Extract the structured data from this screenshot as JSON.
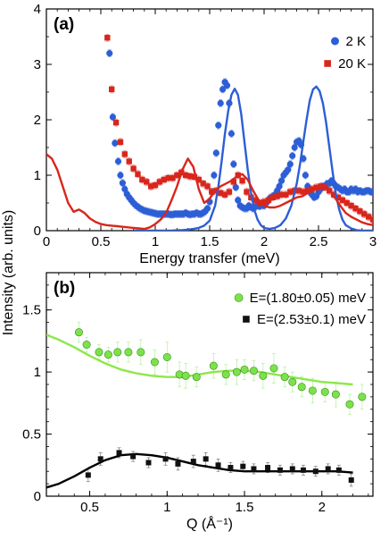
{
  "figure": {
    "ylabel": "Intensity (arb. units)"
  },
  "chart_data": [
    {
      "type": "scatter",
      "panel_label": "(a)",
      "xlabel": "Energy transfer (meV)",
      "ylabel": "",
      "xlim": [
        0,
        3
      ],
      "ylim": [
        0,
        4
      ],
      "x_ticks": [
        "0",
        "0.5",
        "1",
        "1.5",
        "2",
        "2.5",
        "3"
      ],
      "y_ticks": [
        "0",
        "1",
        "2",
        "3",
        "4"
      ],
      "grid": false,
      "legend_position": "top-right",
      "series": [
        {
          "name": "2 K",
          "color": "#2c5ed6",
          "marker": "circle",
          "x": [
            0.58,
            0.61,
            0.63,
            0.66,
            0.68,
            0.7,
            0.72,
            0.74,
            0.76,
            0.78,
            0.8,
            0.82,
            0.84,
            0.86,
            0.88,
            0.9,
            0.92,
            0.94,
            0.96,
            0.98,
            1.0,
            1.02,
            1.04,
            1.06,
            1.08,
            1.1,
            1.12,
            1.14,
            1.16,
            1.18,
            1.2,
            1.22,
            1.24,
            1.26,
            1.28,
            1.3,
            1.32,
            1.34,
            1.36,
            1.38,
            1.4,
            1.42,
            1.44,
            1.46,
            1.48,
            1.5,
            1.52,
            1.54,
            1.56,
            1.58,
            1.6,
            1.62,
            1.64,
            1.66,
            1.68,
            1.7,
            1.72,
            1.74,
            1.76,
            1.78,
            1.8,
            1.82,
            1.84,
            1.86,
            1.88,
            1.9,
            1.92,
            1.94,
            1.96,
            1.98,
            2.0,
            2.02,
            2.04,
            2.06,
            2.08,
            2.1,
            2.12,
            2.14,
            2.16,
            2.18,
            2.2,
            2.22,
            2.24,
            2.26,
            2.28,
            2.3,
            2.32,
            2.34,
            2.36,
            2.38,
            2.4,
            2.42,
            2.44,
            2.46,
            2.48,
            2.5,
            2.52,
            2.54,
            2.56,
            2.58,
            2.6,
            2.62,
            2.64,
            2.66,
            2.68,
            2.7,
            2.72,
            2.74,
            2.76,
            2.78,
            2.8,
            2.82,
            2.84,
            2.86,
            2.88,
            2.9,
            2.92,
            2.94,
            2.96,
            2.98,
            3.0
          ],
          "y": [
            3.2,
            2.05,
            1.58,
            1.25,
            1.0,
            0.86,
            0.75,
            0.66,
            0.6,
            0.55,
            0.5,
            0.46,
            0.43,
            0.4,
            0.38,
            0.36,
            0.35,
            0.34,
            0.33,
            0.32,
            0.31,
            0.3,
            0.3,
            0.3,
            0.3,
            0.3,
            0.3,
            0.29,
            0.29,
            0.3,
            0.3,
            0.3,
            0.3,
            0.3,
            0.32,
            0.3,
            0.29,
            0.3,
            0.3,
            0.32,
            0.3,
            0.3,
            0.32,
            0.35,
            0.4,
            0.52,
            0.7,
            1.0,
            1.4,
            1.9,
            2.3,
            2.55,
            2.68,
            2.62,
            2.3,
            1.75,
            1.2,
            0.78,
            0.55,
            0.45,
            0.42,
            0.4,
            0.4,
            0.45,
            0.42,
            0.4,
            0.43,
            0.45,
            0.44,
            0.46,
            0.45,
            0.5,
            0.55,
            0.6,
            0.62,
            0.65,
            0.72,
            0.8,
            0.9,
            1.0,
            1.05,
            1.1,
            1.2,
            1.35,
            1.5,
            1.6,
            1.62,
            1.55,
            1.3,
            1.0,
            0.8,
            0.7,
            0.65,
            0.6,
            0.62,
            0.7,
            0.75,
            0.8,
            0.8,
            0.85,
            0.85,
            0.9,
            0.85,
            0.8,
            0.78,
            0.75,
            0.72,
            0.75,
            0.7,
            0.7,
            0.75,
            0.72,
            0.75,
            0.7,
            0.72,
            0.7,
            0.7,
            0.72,
            0.72,
            0.7,
            0.7
          ]
        },
        {
          "name": "20 K",
          "color": "#d8261c",
          "marker": "square",
          "x": [
            0.56,
            0.6,
            0.64,
            0.68,
            0.72,
            0.76,
            0.8,
            0.84,
            0.88,
            0.92,
            0.96,
            1.0,
            1.04,
            1.08,
            1.12,
            1.16,
            1.2,
            1.24,
            1.28,
            1.32,
            1.36,
            1.4,
            1.44,
            1.48,
            1.52,
            1.56,
            1.6,
            1.64,
            1.68,
            1.72,
            1.76,
            1.8,
            1.84,
            1.88,
            1.92,
            1.96,
            2.0,
            2.04,
            2.08,
            2.12,
            2.16,
            2.2,
            2.24,
            2.28,
            2.32,
            2.36,
            2.4,
            2.44,
            2.48,
            2.52,
            2.56,
            2.6,
            2.64,
            2.68,
            2.72,
            2.76,
            2.8,
            2.84,
            2.88,
            2.92,
            2.96,
            3.0
          ],
          "y": [
            3.48,
            2.55,
            1.95,
            1.6,
            1.38,
            1.25,
            1.12,
            1.02,
            0.92,
            0.88,
            0.8,
            0.82,
            0.88,
            0.92,
            0.95,
            0.95,
            1.0,
            1.05,
            1.0,
            0.98,
            0.97,
            0.92,
            0.85,
            0.8,
            0.7,
            0.72,
            0.68,
            0.65,
            0.7,
            0.88,
            1.0,
            0.9,
            0.7,
            0.6,
            0.55,
            0.5,
            0.52,
            0.55,
            0.6,
            0.62,
            0.65,
            0.65,
            0.7,
            0.72,
            0.72,
            0.7,
            0.72,
            0.75,
            0.78,
            0.8,
            0.78,
            0.72,
            0.65,
            0.6,
            0.55,
            0.5,
            0.45,
            0.4,
            0.35,
            0.3,
            0.25,
            0.2
          ]
        }
      ],
      "fit_curves": [
        {
          "color": "#2c5ed6",
          "x": [
            0.8,
            0.85,
            0.9,
            0.95,
            1.0,
            1.05,
            1.1,
            1.15,
            1.2,
            1.25,
            1.3,
            1.35,
            1.4,
            1.45,
            1.5,
            1.55,
            1.58,
            1.61,
            1.64,
            1.67,
            1.7,
            1.73,
            1.76,
            1.79,
            1.82,
            1.85,
            1.88,
            1.91,
            1.94,
            1.97,
            2.0,
            2.05,
            2.1,
            2.15,
            2.2,
            2.25,
            2.3,
            2.33,
            2.36,
            2.39,
            2.42,
            2.45,
            2.48,
            2.51,
            2.54,
            2.57,
            2.6,
            2.63,
            2.66,
            2.69,
            2.72,
            2.75,
            2.8,
            2.85,
            2.9,
            2.95,
            3.0
          ],
          "y": [
            0.0,
            0.0,
            0.0,
            0.0,
            0.0,
            0.0,
            0.0,
            0.0,
            0.01,
            0.01,
            0.02,
            0.03,
            0.05,
            0.09,
            0.18,
            0.45,
            0.8,
            1.25,
            1.75,
            2.15,
            2.45,
            2.56,
            2.45,
            2.1,
            1.6,
            1.1,
            0.68,
            0.38,
            0.2,
            0.1,
            0.05,
            0.03,
            0.05,
            0.1,
            0.22,
            0.45,
            0.85,
            1.2,
            1.6,
            2.0,
            2.35,
            2.55,
            2.6,
            2.52,
            2.3,
            1.95,
            1.5,
            1.05,
            0.65,
            0.38,
            0.2,
            0.1,
            0.04,
            0.01,
            0.0,
            0.0,
            0.0
          ]
        },
        {
          "color": "#d8261c",
          "x": [
            0.0,
            0.05,
            0.1,
            0.15,
            0.2,
            0.25,
            0.3,
            0.35,
            0.4,
            0.45,
            0.5,
            0.55,
            0.6,
            0.65,
            0.7,
            0.75,
            0.8,
            0.85,
            0.9,
            0.95,
            1.0,
            1.05,
            1.1,
            1.15,
            1.2,
            1.25,
            1.3,
            1.35,
            1.4,
            1.45,
            1.5,
            1.55,
            1.6,
            1.65,
            1.7,
            1.75,
            1.8,
            1.85,
            1.9,
            1.95,
            2.0,
            2.05,
            2.1,
            2.15,
            2.2,
            2.25,
            2.3,
            2.35,
            2.4,
            2.45,
            2.5,
            2.55,
            2.6,
            2.65,
            2.7,
            2.75,
            2.8,
            2.85,
            2.9,
            2.95,
            3.0
          ],
          "y": [
            1.38,
            1.3,
            1.1,
            0.8,
            0.5,
            0.34,
            0.38,
            0.32,
            0.22,
            0.16,
            0.12,
            0.1,
            0.09,
            0.08,
            0.07,
            0.06,
            0.05,
            0.04,
            0.03,
            0.06,
            0.12,
            0.2,
            0.32,
            0.55,
            0.8,
            1.1,
            1.3,
            1.15,
            0.75,
            0.5,
            0.58,
            0.72,
            0.8,
            0.85,
            0.9,
            0.98,
            1.02,
            0.92,
            0.72,
            0.55,
            0.45,
            0.42,
            0.42,
            0.45,
            0.5,
            0.55,
            0.6,
            0.62,
            0.68,
            0.74,
            0.8,
            0.82,
            0.75,
            0.6,
            0.45,
            0.32,
            0.25,
            0.2,
            0.15,
            0.12,
            0.1
          ]
        }
      ]
    },
    {
      "type": "scatter",
      "panel_label": "(b)",
      "xlabel": "Q (Å⁻¹)",
      "ylabel": "",
      "xlim": [
        0.22,
        2.33
      ],
      "ylim": [
        0,
        1.8
      ],
      "x_ticks": [
        "0.5",
        "1",
        "1.5",
        "2"
      ],
      "y_ticks": [
        "0",
        "0.5",
        "1",
        "1.5"
      ],
      "grid": false,
      "legend_position": "top-right",
      "series": [
        {
          "name": "E=(1.80±0.05) meV",
          "color": "#7be34a",
          "marker": "circle",
          "x": [
            0.43,
            0.48,
            0.56,
            0.62,
            0.68,
            0.75,
            0.83,
            0.92,
            1.0,
            1.08,
            1.12,
            1.19,
            1.3,
            1.38,
            1.45,
            1.5,
            1.56,
            1.62,
            1.69,
            1.76,
            1.81,
            1.87,
            1.94,
            2.02,
            2.09,
            2.18,
            2.26
          ],
          "y": [
            1.32,
            1.22,
            1.16,
            1.14,
            1.16,
            1.16,
            1.16,
            1.08,
            1.12,
            0.98,
            0.97,
            0.96,
            1.05,
            0.98,
            1.0,
            1.02,
            1.01,
            0.97,
            1.03,
            0.96,
            0.92,
            0.88,
            0.85,
            0.84,
            0.82,
            0.74,
            0.8
          ],
          "err": [
            0.08,
            0.06,
            0.06,
            0.06,
            0.08,
            0.08,
            0.1,
            0.1,
            0.12,
            0.1,
            0.1,
            0.08,
            0.1,
            0.08,
            0.1,
            0.08,
            0.08,
            0.1,
            0.12,
            0.08,
            0.08,
            0.08,
            0.1,
            0.08,
            0.1,
            0.08,
            0.1
          ]
        },
        {
          "name": "E=(2.53±0.1) meV",
          "color": "#111111",
          "marker": "square",
          "x": [
            0.49,
            0.57,
            0.69,
            0.78,
            0.88,
            0.99,
            1.07,
            1.17,
            1.25,
            1.33,
            1.41,
            1.49,
            1.56,
            1.65,
            1.73,
            1.81,
            1.88,
            1.96,
            2.04,
            2.11,
            2.19
          ],
          "y": [
            0.17,
            0.3,
            0.35,
            0.32,
            0.27,
            0.3,
            0.26,
            0.28,
            0.3,
            0.25,
            0.23,
            0.24,
            0.22,
            0.23,
            0.21,
            0.22,
            0.21,
            0.2,
            0.22,
            0.21,
            0.13
          ],
          "err": [
            0.05,
            0.05,
            0.04,
            0.04,
            0.04,
            0.05,
            0.05,
            0.05,
            0.05,
            0.05,
            0.04,
            0.04,
            0.04,
            0.04,
            0.04,
            0.04,
            0.04,
            0.04,
            0.04,
            0.04,
            0.05
          ]
        }
      ],
      "fit_curves": [
        {
          "color": "#8ce84a",
          "x": [
            0.22,
            0.3,
            0.4,
            0.5,
            0.6,
            0.7,
            0.8,
            0.9,
            1.0,
            1.1,
            1.2,
            1.3,
            1.4,
            1.5,
            1.6,
            1.7,
            1.8,
            1.9,
            2.0,
            2.1,
            2.2
          ],
          "y": [
            1.3,
            1.26,
            1.2,
            1.13,
            1.07,
            1.02,
            0.99,
            0.97,
            0.96,
            0.96,
            0.98,
            1.0,
            1.01,
            1.01,
            1.0,
            0.98,
            0.96,
            0.94,
            0.92,
            0.91,
            0.9
          ]
        },
        {
          "color": "#000000",
          "x": [
            0.22,
            0.3,
            0.4,
            0.5,
            0.6,
            0.7,
            0.8,
            0.9,
            1.0,
            1.1,
            1.2,
            1.3,
            1.4,
            1.5,
            1.6,
            1.7,
            1.8,
            1.9,
            2.0,
            2.1,
            2.2
          ],
          "y": [
            0.07,
            0.1,
            0.16,
            0.23,
            0.29,
            0.33,
            0.34,
            0.33,
            0.31,
            0.28,
            0.25,
            0.23,
            0.21,
            0.2,
            0.2,
            0.2,
            0.2,
            0.2,
            0.2,
            0.2,
            0.19
          ]
        }
      ]
    }
  ]
}
